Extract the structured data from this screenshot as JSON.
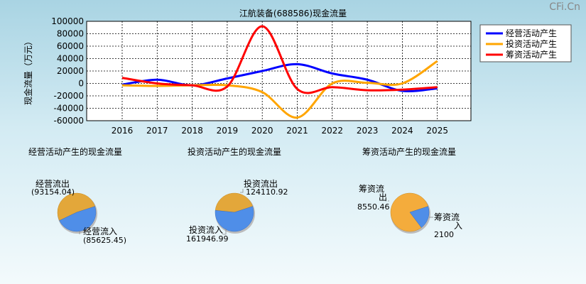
{
  "watermark": "CFi.Cn",
  "chart_data": [
    {
      "type": "line",
      "title": "江航装备(688586)现金流量",
      "ylabel": "现金流量（万元）",
      "x": [
        "2016",
        "2017",
        "2018",
        "2019",
        "2020",
        "2021",
        "2022",
        "2023",
        "2024",
        "2025"
      ],
      "ylim": [
        -60000,
        100000
      ],
      "yticks": [
        100000,
        80000,
        60000,
        40000,
        20000,
        0,
        -20000,
        -40000,
        -60000
      ],
      "grid": true,
      "legend": "top-right",
      "series": [
        {
          "name": "经营活动产生",
          "color": "#0000ff",
          "values": [
            -2000,
            6000,
            -3000,
            8000,
            20000,
            31000,
            16000,
            6000,
            -12000,
            -8000
          ]
        },
        {
          "name": "投资活动产生",
          "color": "#ffa500",
          "values": [
            -3000,
            -4000,
            -3000,
            -3000,
            -14000,
            -55000,
            0,
            1000,
            0,
            36000
          ]
        },
        {
          "name": "筹资活动产生",
          "color": "#ff0000",
          "values": [
            9000,
            0,
            -3000,
            -5000,
            92000,
            -9000,
            -6000,
            -11000,
            -10000,
            -6000
          ]
        }
      ]
    },
    {
      "type": "pie",
      "title": "经营活动产生的现金流量",
      "slices": [
        {
          "label": "经营流出",
          "value": "(93154.04)",
          "num": 93154.04,
          "color": "#e3a73a"
        },
        {
          "label": "经营流入",
          "value": "(85625.45)",
          "num": 85625.45,
          "color": "#4f8ee8"
        }
      ]
    },
    {
      "type": "pie",
      "title": "投资活动产生的现金流量",
      "slices": [
        {
          "label": "投资流出",
          "value": "124110.92",
          "num": 124110.92,
          "color": "#e3a73a"
        },
        {
          "label": "投资流入",
          "value": "161946.99",
          "num": 161946.99,
          "color": "#4f8ee8"
        }
      ]
    },
    {
      "type": "pie",
      "title": "筹资活动产生的现金流量",
      "slices": [
        {
          "label": "筹资流出",
          "value": "8550.46",
          "num": 8550.46,
          "color": "#f4ac3c"
        },
        {
          "label": "筹资流入",
          "value": "2100",
          "num": 2100,
          "color": "#4f8ee8"
        }
      ]
    }
  ]
}
